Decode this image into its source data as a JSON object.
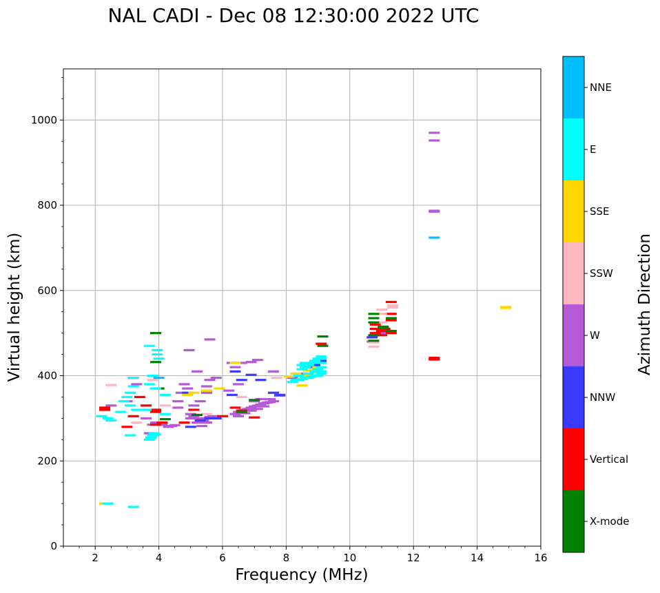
{
  "chart_data": {
    "type": "scatter",
    "title": "NAL CADI - Dec 08 12:30:00 2022 UTC",
    "xlabel": "Frequency (MHz)",
    "ylabel": "Virtual height (km)",
    "xlim": [
      1,
      16
    ],
    "ylim": [
      0,
      1120
    ],
    "xticks": [
      2,
      4,
      6,
      8,
      10,
      12,
      14,
      16
    ],
    "yticks": [
      0,
      200,
      400,
      600,
      800,
      1000
    ],
    "grid": true,
    "colorbar": {
      "label": "Azimuth Direction",
      "categories": [
        {
          "name": "X-mode",
          "color": "#008000"
        },
        {
          "name": "Vertical",
          "color": "#ff0000"
        },
        {
          "name": "NNW",
          "color": "#3a3aff"
        },
        {
          "name": "W",
          "color": "#b45ad6"
        },
        {
          "name": "SSW",
          "color": "#ffb6c1"
        },
        {
          "name": "SSE",
          "color": "#ffd700"
        },
        {
          "name": "E",
          "color": "#00ffff"
        },
        {
          "name": "NNE",
          "color": "#00bfff"
        }
      ]
    },
    "series": [
      {
        "name": "W",
        "points": [
          [
            12.65,
            970
          ],
          [
            12.65,
            952
          ],
          [
            12.65,
            787
          ],
          [
            12.65,
            785
          ],
          [
            5.0,
            310
          ],
          [
            5.1,
            305
          ],
          [
            5.2,
            300
          ],
          [
            5.3,
            298
          ],
          [
            5.4,
            295
          ],
          [
            5.5,
            300
          ],
          [
            5.6,
            303
          ],
          [
            5.7,
            305
          ],
          [
            5.0,
            300
          ],
          [
            5.2,
            290
          ],
          [
            5.35,
            282
          ],
          [
            5.5,
            290
          ],
          [
            6.4,
            310
          ],
          [
            6.5,
            315
          ],
          [
            6.6,
            318
          ],
          [
            6.7,
            320
          ],
          [
            6.8,
            322
          ],
          [
            6.9,
            325
          ],
          [
            7.0,
            328
          ],
          [
            7.1,
            330
          ],
          [
            7.2,
            332
          ],
          [
            7.3,
            335
          ],
          [
            7.4,
            337
          ],
          [
            7.5,
            338
          ],
          [
            7.6,
            340
          ],
          [
            6.5,
            305
          ],
          [
            6.7,
            312
          ],
          [
            6.9,
            318
          ],
          [
            7.1,
            322
          ],
          [
            7.3,
            328
          ],
          [
            7.0,
            340
          ],
          [
            7.2,
            345
          ],
          [
            7.5,
            345
          ],
          [
            4.6,
            325
          ],
          [
            4.6,
            340
          ],
          [
            4.7,
            360
          ],
          [
            4.8,
            380
          ],
          [
            4.9,
            370
          ],
          [
            5.1,
            330
          ],
          [
            5.3,
            340
          ],
          [
            5.5,
            360
          ],
          [
            5.6,
            485
          ],
          [
            4.95,
            460
          ],
          [
            5.2,
            410
          ],
          [
            5.5,
            375
          ],
          [
            5.6,
            390
          ],
          [
            5.8,
            395
          ],
          [
            6.3,
            430
          ],
          [
            6.4,
            420
          ],
          [
            6.6,
            430
          ],
          [
            6.9,
            432
          ],
          [
            7.1,
            437
          ],
          [
            7.6,
            410
          ],
          [
            7.8,
            353
          ],
          [
            6.2,
            365
          ],
          [
            6.5,
            380
          ],
          [
            3.3,
            380
          ],
          [
            3.6,
            300
          ],
          [
            3.7,
            265
          ],
          [
            3.8,
            285
          ],
          [
            3.9,
            290
          ],
          [
            4.0,
            290
          ],
          [
            4.1,
            285
          ],
          [
            4.3,
            280
          ],
          [
            4.4,
            282
          ],
          [
            4.5,
            284
          ],
          [
            3.0,
            340
          ],
          [
            2.3,
            320
          ],
          [
            2.5,
            330
          ],
          [
            8.2,
            395
          ],
          [
            8.5,
            405
          ],
          [
            8.8,
            420
          ],
          [
            9.0,
            435
          ],
          [
            10.7,
            480
          ],
          [
            11.0,
            500
          ]
        ]
      },
      {
        "name": "Vertical",
        "points": [
          [
            12.65,
            442
          ],
          [
            12.65,
            438
          ],
          [
            11.3,
            573
          ],
          [
            10.8,
            520
          ],
          [
            10.8,
            510
          ],
          [
            10.8,
            500
          ],
          [
            11.0,
            505
          ],
          [
            11.0,
            495
          ],
          [
            11.1,
            510
          ],
          [
            11.3,
            545
          ],
          [
            11.3,
            530
          ],
          [
            11.3,
            500
          ],
          [
            2.3,
            325
          ],
          [
            2.3,
            320
          ],
          [
            3.0,
            280
          ],
          [
            3.2,
            305
          ],
          [
            3.4,
            350
          ],
          [
            3.6,
            330
          ],
          [
            3.9,
            320
          ],
          [
            3.9,
            315
          ],
          [
            3.9,
            285
          ],
          [
            4.1,
            290
          ],
          [
            5.1,
            320
          ],
          [
            6.0,
            305
          ],
          [
            6.4,
            325
          ],
          [
            6.6,
            318
          ],
          [
            7.0,
            302
          ],
          [
            4.8,
            290
          ],
          [
            9.1,
            475
          ],
          [
            3.2,
            395
          ]
        ]
      },
      {
        "name": "NNW",
        "points": [
          [
            5.0,
            280
          ],
          [
            5.3,
            295
          ],
          [
            5.6,
            300
          ],
          [
            6.4,
            410
          ],
          [
            6.6,
            390
          ],
          [
            6.9,
            402
          ],
          [
            7.2,
            390
          ],
          [
            7.6,
            360
          ],
          [
            7.8,
            355
          ],
          [
            8.6,
            420
          ],
          [
            8.9,
            425
          ],
          [
            9.1,
            435
          ],
          [
            4.9,
            360
          ],
          [
            6.3,
            355
          ],
          [
            5.8,
            300
          ],
          [
            10.7,
            490
          ]
        ]
      },
      {
        "name": "SSW",
        "points": [
          [
            10.75,
            468
          ],
          [
            10.75,
            478
          ],
          [
            11.0,
            555
          ],
          [
            11.0,
            545
          ],
          [
            11.35,
            560
          ],
          [
            11.35,
            565
          ],
          [
            11.0,
            525
          ],
          [
            2.5,
            378
          ],
          [
            3.8,
            390
          ],
          [
            4.2,
            330
          ],
          [
            5.5,
            310
          ],
          [
            6.6,
            350
          ],
          [
            7.7,
            395
          ],
          [
            3.3,
            290
          ]
        ]
      },
      {
        "name": "X-mode",
        "points": [
          [
            10.75,
            545
          ],
          [
            10.75,
            535
          ],
          [
            10.75,
            525
          ],
          [
            10.75,
            495
          ],
          [
            10.75,
            482
          ],
          [
            11.05,
            515
          ],
          [
            11.05,
            512
          ],
          [
            11.3,
            535
          ],
          [
            11.3,
            505
          ],
          [
            9.15,
            492
          ],
          [
            9.15,
            470
          ],
          [
            6.6,
            315
          ],
          [
            7.0,
            343
          ],
          [
            5.2,
            308
          ],
          [
            4.0,
            370
          ],
          [
            4.2,
            298
          ],
          [
            3.9,
            432
          ],
          [
            3.9,
            500
          ]
        ]
      },
      {
        "name": "SSE",
        "points": [
          [
            14.9,
            561
          ],
          [
            14.9,
            559
          ],
          [
            8.5,
            377
          ],
          [
            8.6,
            400
          ],
          [
            8.7,
            412
          ],
          [
            8.9,
            415
          ],
          [
            9.0,
            420
          ],
          [
            6.4,
            430
          ],
          [
            4.9,
            355
          ],
          [
            5.1,
            360
          ],
          [
            5.5,
            365
          ],
          [
            5.9,
            370
          ],
          [
            2.3,
            100
          ],
          [
            8.1,
            398
          ],
          [
            8.3,
            405
          ]
        ]
      },
      {
        "name": "NNE",
        "points": [
          [
            12.65,
            724
          ],
          [
            4.0,
            395
          ],
          [
            8.4,
            390
          ]
        ]
      },
      {
        "name": "E",
        "points": [
          [
            3.2,
            92
          ],
          [
            2.4,
            100
          ],
          [
            2.2,
            305
          ],
          [
            2.4,
            300
          ],
          [
            2.5,
            295
          ],
          [
            2.8,
            315
          ],
          [
            2.9,
            340
          ],
          [
            3.0,
            350
          ],
          [
            3.1,
            360
          ],
          [
            3.1,
            330
          ],
          [
            3.1,
            260
          ],
          [
            3.2,
            375
          ],
          [
            3.2,
            395
          ],
          [
            3.3,
            320
          ],
          [
            3.6,
            320
          ],
          [
            3.7,
            380
          ],
          [
            3.7,
            250
          ],
          [
            3.75,
            255
          ],
          [
            3.8,
            260
          ],
          [
            3.8,
            400
          ],
          [
            3.9,
            370
          ],
          [
            3.95,
            460
          ],
          [
            3.95,
            450
          ],
          [
            4.0,
            440
          ],
          [
            3.9,
            262
          ],
          [
            3.85,
            265
          ],
          [
            3.7,
            470
          ],
          [
            4.2,
            355
          ],
          [
            4.2,
            310
          ],
          [
            8.2,
            385
          ],
          [
            8.3,
            390
          ],
          [
            8.4,
            390
          ],
          [
            8.5,
            392
          ],
          [
            8.6,
            395
          ],
          [
            8.7,
            395
          ],
          [
            8.8,
            398
          ],
          [
            8.9,
            400
          ],
          [
            9.0,
            400
          ],
          [
            9.1,
            405
          ],
          [
            9.1,
            410
          ],
          [
            9.1,
            420
          ],
          [
            9.1,
            430
          ],
          [
            9.1,
            440
          ],
          [
            9.1,
            445
          ],
          [
            9.0,
            440
          ],
          [
            8.9,
            435
          ],
          [
            8.8,
            430
          ],
          [
            8.7,
            425
          ],
          [
            8.6,
            420
          ],
          [
            8.5,
            415
          ],
          [
            8.4,
            400
          ],
          [
            8.9,
            410
          ],
          [
            9.0,
            415
          ],
          [
            8.7,
            405
          ],
          [
            8.6,
            430
          ],
          [
            8.5,
            425
          ]
        ]
      }
    ]
  }
}
